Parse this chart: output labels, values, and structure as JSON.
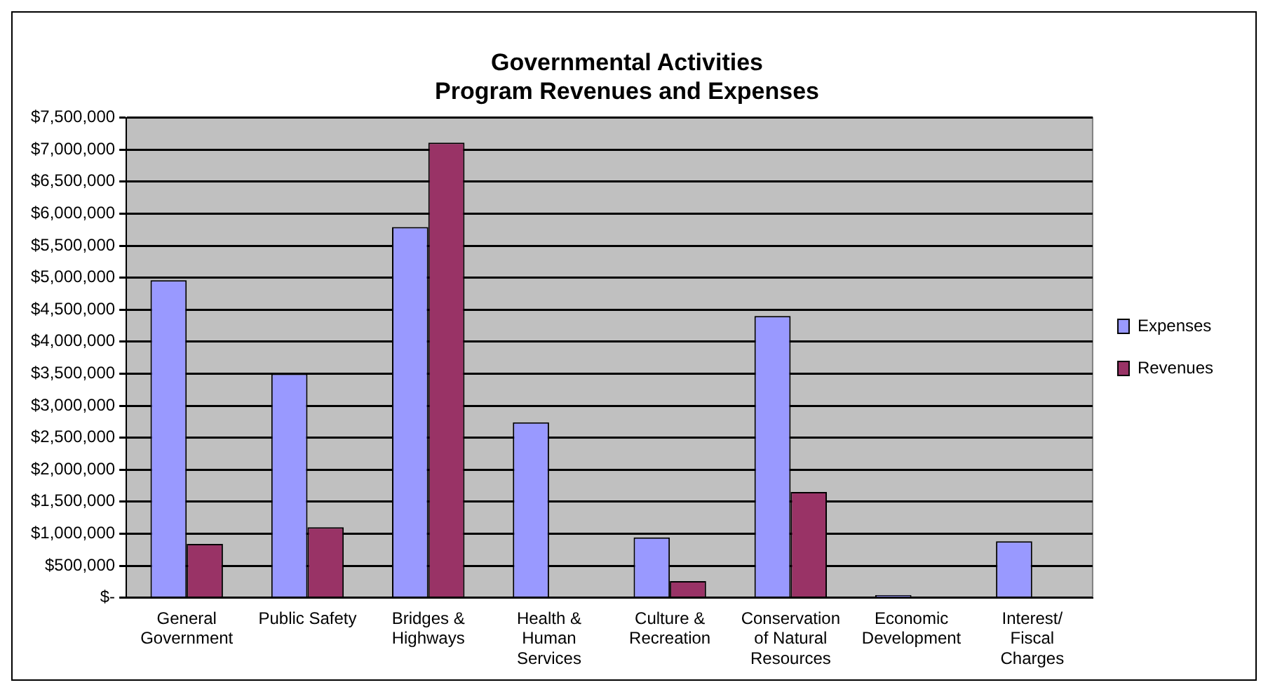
{
  "chart_data": {
    "type": "bar",
    "title": "Governmental Activities\nProgram Revenues and Expenses",
    "categories": [
      "General Government",
      "Public Safety",
      "Bridges & Highways",
      "Health & Human Services",
      "Culture & Recreation",
      "Conservation of Natural Resources",
      "Economic Development",
      "Interest/ Fiscal Charges"
    ],
    "series": [
      {
        "name": "Expenses",
        "color": "#9999ff",
        "values": [
          4960000,
          3500000,
          5790000,
          2740000,
          940000,
          4400000,
          40000,
          880000
        ]
      },
      {
        "name": "Revenues",
        "color": "#993366",
        "values": [
          840000,
          1100000,
          7110000,
          0,
          260000,
          1650000,
          0,
          0
        ]
      }
    ],
    "ylim": [
      0,
      7500000
    ],
    "yticks": [
      {
        "value": 0,
        "label": "$-"
      },
      {
        "value": 500000,
        "label": "$500,000"
      },
      {
        "value": 1000000,
        "label": "$1,000,000"
      },
      {
        "value": 1500000,
        "label": "$1,500,000"
      },
      {
        "value": 2000000,
        "label": "$2,000,000"
      },
      {
        "value": 2500000,
        "label": "$2,500,000"
      },
      {
        "value": 3000000,
        "label": "$3,000,000"
      },
      {
        "value": 3500000,
        "label": "$3,500,000"
      },
      {
        "value": 4000000,
        "label": "$4,000,000"
      },
      {
        "value": 4500000,
        "label": "$4,500,000"
      },
      {
        "value": 5000000,
        "label": "$5,000,000"
      },
      {
        "value": 5500000,
        "label": "$5,500,000"
      },
      {
        "value": 6000000,
        "label": "$6,000,000"
      },
      {
        "value": 6500000,
        "label": "$6,500,000"
      },
      {
        "value": 7000000,
        "label": "$7,000,000"
      },
      {
        "value": 7500000,
        "label": "$7,500,000"
      }
    ],
    "grid": "y",
    "legend": "right"
  }
}
